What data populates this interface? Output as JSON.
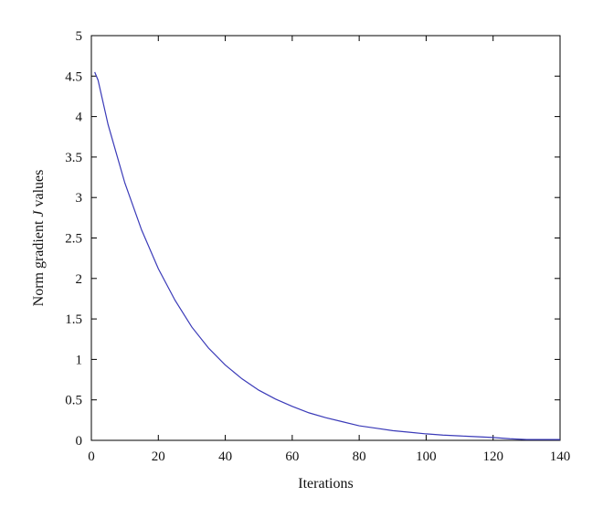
{
  "chart_data": {
    "type": "line",
    "xlabel": "Iterations",
    "ylabel_prefix": "Norm gradient ",
    "ylabel_italic": "J",
    "ylabel_suffix": " values",
    "xlim": [
      0,
      140
    ],
    "ylim": [
      0,
      5
    ],
    "xticks": [
      0,
      20,
      40,
      60,
      80,
      100,
      120,
      140
    ],
    "xtick_labels": [
      "0",
      "20",
      "40",
      "60",
      "80",
      "100",
      "120",
      "140"
    ],
    "yticks": [
      0,
      0.5,
      1,
      1.5,
      2,
      2.5,
      3,
      3.5,
      4,
      4.5,
      5
    ],
    "ytick_labels": [
      "0",
      "0.5",
      "1",
      "1.5",
      "2",
      "2.5",
      "3",
      "3.5",
      "4",
      "4.5",
      "5"
    ],
    "grid": false,
    "legend": "none",
    "line_color": "#3a3ab8",
    "series": [
      {
        "x": [
          1,
          2,
          5,
          10,
          15,
          20,
          25,
          30,
          35,
          40,
          45,
          50,
          55,
          60,
          65,
          70,
          75,
          80,
          85,
          90,
          95,
          100,
          105,
          110,
          115,
          120,
          125,
          130,
          135,
          140
        ],
        "values": [
          4.55,
          4.45,
          3.9,
          3.18,
          2.6,
          2.12,
          1.73,
          1.4,
          1.14,
          0.93,
          0.76,
          0.62,
          0.51,
          0.42,
          0.34,
          0.28,
          0.23,
          0.18,
          0.15,
          0.12,
          0.1,
          0.08,
          0.065,
          0.055,
          0.045,
          0.035,
          0.02,
          0.01,
          0.01,
          0.01
        ]
      }
    ]
  }
}
